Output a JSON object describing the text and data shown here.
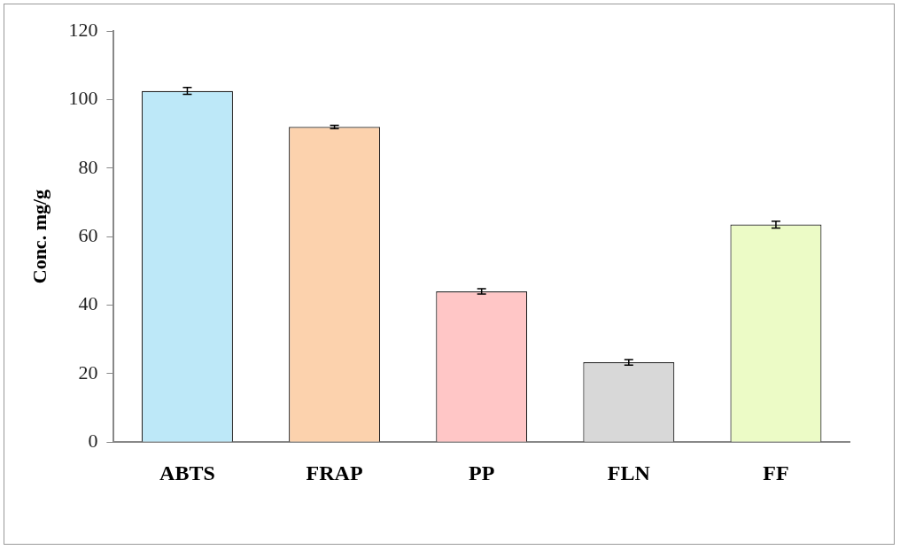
{
  "chart_data": {
    "type": "bar",
    "ylabel": "Conc. mg/g",
    "categories": [
      "ABTS",
      "FRAP",
      "PP",
      "FLN",
      "FF"
    ],
    "values": [
      102.5,
      92,
      44,
      23.3,
      63.5
    ],
    "errors": [
      1,
      0.5,
      0.8,
      0.8,
      1
    ],
    "colors": [
      "#bde8f8",
      "#fcd2ad",
      "#ffc6c6",
      "#d8d8d8",
      "#ecfbc6"
    ],
    "ylim": [
      0,
      120
    ],
    "yticks": [
      0,
      20,
      40,
      60,
      80,
      100,
      120
    ],
    "grid": false,
    "legend": false
  }
}
